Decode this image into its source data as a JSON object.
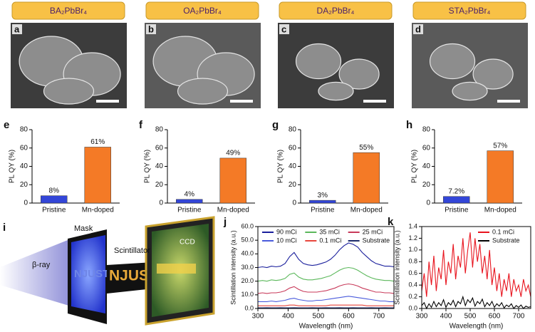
{
  "images": [
    {
      "title": "BA₂PbBr₄",
      "panel": "a"
    },
    {
      "title": "OA₂PbBr₄",
      "panel": "b"
    },
    {
      "title": "DA₂PbBr₄",
      "panel": "c"
    },
    {
      "title": "STA₂PbBr₄",
      "panel": "d"
    }
  ],
  "diagram": {
    "panel": "i",
    "beam": "β-ray",
    "mask": "Mask",
    "scintillator": "Scintillator",
    "detector": "CCD",
    "sample": "NJUST"
  },
  "chart_data": [
    {
      "type": "bar",
      "panel": "e",
      "ylabel": "PL QY (%)",
      "categories": [
        "Pristine",
        "Mn-doped"
      ],
      "values": [
        8,
        61
      ],
      "value_labels": [
        "8%",
        "61%"
      ],
      "colors": [
        "#3346d8",
        "#f47a26"
      ],
      "ylim": [
        0,
        80
      ],
      "yticks": [
        0,
        20,
        40,
        60,
        80
      ]
    },
    {
      "type": "bar",
      "panel": "f",
      "ylabel": "PL QY (%)",
      "categories": [
        "Pristine",
        "Mn-doped"
      ],
      "values": [
        4,
        49
      ],
      "value_labels": [
        "4%",
        "49%"
      ],
      "colors": [
        "#3346d8",
        "#f47a26"
      ],
      "ylim": [
        0,
        80
      ],
      "yticks": [
        0,
        20,
        40,
        60,
        80
      ]
    },
    {
      "type": "bar",
      "panel": "g",
      "ylabel": "PL QY (%)",
      "categories": [
        "Pristine",
        "Mn-doped"
      ],
      "values": [
        3,
        55
      ],
      "value_labels": [
        "3%",
        "55%"
      ],
      "colors": [
        "#3346d8",
        "#f47a26"
      ],
      "ylim": [
        0,
        80
      ],
      "yticks": [
        0,
        20,
        40,
        60,
        80
      ]
    },
    {
      "type": "bar",
      "panel": "h",
      "ylabel": "PL QY (%)",
      "categories": [
        "Pristine",
        "Mn-doped"
      ],
      "values": [
        7.2,
        57
      ],
      "value_labels": [
        "7.2%",
        "57%"
      ],
      "colors": [
        "#3346d8",
        "#f47a26"
      ],
      "ylim": [
        0,
        80
      ],
      "yticks": [
        0,
        20,
        40,
        60,
        80
      ]
    },
    {
      "type": "line",
      "panel": "j",
      "xlabel": "Wavelength (nm)",
      "ylabel": "Scintillation intensity (a.u.)",
      "legend": "top",
      "legend_columns": 3,
      "x": [
        300,
        315,
        330,
        345,
        360,
        375,
        390,
        405,
        420,
        435,
        450,
        465,
        480,
        495,
        510,
        525,
        540,
        555,
        570,
        585,
        600,
        615,
        630,
        645,
        660,
        675,
        690,
        705,
        720,
        735,
        750
      ],
      "xlim": [
        300,
        750
      ],
      "xticks": [
        300,
        400,
        500,
        600,
        700
      ],
      "ylim": [
        0,
        60
      ],
      "yticks": [
        {
          "value": 0,
          "label": "0.0"
        },
        {
          "value": 10,
          "label": "10.0"
        },
        {
          "value": 20,
          "label": "20.0"
        },
        {
          "value": 30,
          "label": "30.0"
        },
        {
          "value": 40,
          "label": "40.0"
        },
        {
          "value": 50,
          "label": "50.0"
        },
        {
          "value": 60,
          "label": "60.0"
        }
      ],
      "series": [
        {
          "name": "90 mCi",
          "color": "#1a1f9c",
          "values": [
            30,
            30.5,
            30,
            31,
            30.5,
            31,
            33,
            38,
            41,
            36,
            33,
            32,
            31.5,
            32,
            33,
            34,
            36,
            39,
            43,
            46,
            48,
            47,
            45,
            41,
            38,
            35,
            33,
            32,
            31,
            31,
            30.5
          ]
        },
        {
          "name": "35 mCi",
          "color": "#5bb85b",
          "values": [
            20,
            20.5,
            20,
            21,
            20.5,
            21,
            22,
            25,
            26,
            23,
            21.5,
            21,
            21,
            21.5,
            22,
            23,
            24,
            26,
            28,
            29.5,
            30,
            29.5,
            28,
            26,
            24,
            22.5,
            21.5,
            21,
            20.5,
            20.5,
            20
          ]
        },
        {
          "name": "25 mCi",
          "color": "#c83a5a",
          "values": [
            11,
            11.5,
            11,
            11.5,
            11.5,
            12,
            13,
            15,
            16,
            14,
            12.5,
            12,
            12,
            12,
            12.5,
            13,
            14,
            15,
            16.5,
            17.5,
            18,
            17.5,
            16.5,
            15,
            14,
            13,
            12,
            12,
            11.5,
            11.5,
            11
          ]
        },
        {
          "name": "10 mCi",
          "color": "#4a5bdc",
          "values": [
            5,
            5,
            5,
            5.5,
            5,
            5.5,
            6,
            7,
            7.5,
            6.5,
            6,
            5.5,
            5.5,
            6,
            6,
            6.5,
            7,
            7.5,
            8,
            8.5,
            9,
            8.5,
            8,
            7.5,
            7,
            6.5,
            6,
            5.5,
            5.5,
            5,
            5
          ]
        },
        {
          "name": "0.1 mCi",
          "color": "#e8463c",
          "values": [
            2,
            2,
            2,
            2,
            2,
            2,
            2,
            2.5,
            2.5,
            2,
            2,
            2,
            2,
            2,
            2,
            2,
            2.5,
            2.5,
            2.5,
            2.5,
            2.5,
            2.5,
            2.5,
            2.5,
            2,
            2,
            2,
            2,
            2,
            2,
            2
          ]
        },
        {
          "name": "Substrate",
          "color": "#1c2a6a",
          "values": [
            0.5,
            0.5,
            0.6,
            0.5,
            0.5,
            0.6,
            0.5,
            0.5,
            0.6,
            0.5,
            0.5,
            0.5,
            0.6,
            0.5,
            0.5,
            0.6,
            0.5,
            0.5,
            0.6,
            0.5,
            0.5,
            0.6,
            0.5,
            0.5,
            0.5,
            0.6,
            0.5,
            0.5,
            0.6,
            0.5,
            0.5
          ]
        }
      ]
    },
    {
      "type": "line",
      "panel": "k",
      "xlabel": "Wavelength (nm)",
      "ylabel": "Scintillation intensity (a.u.)",
      "legend": "upper right",
      "legend_columns": 1,
      "x": [
        300,
        310,
        320,
        330,
        340,
        350,
        360,
        370,
        380,
        390,
        400,
        410,
        420,
        430,
        440,
        450,
        460,
        470,
        480,
        490,
        500,
        510,
        520,
        530,
        540,
        550,
        560,
        570,
        580,
        590,
        600,
        610,
        620,
        630,
        640,
        650,
        660,
        670,
        680,
        690,
        700,
        710,
        720,
        730,
        740,
        750
      ],
      "xlim": [
        300,
        750
      ],
      "xticks": [
        300,
        400,
        500,
        600,
        700
      ],
      "ylim": [
        0,
        1.4
      ],
      "yticks": [
        {
          "value": 0,
          "label": "0.0"
        },
        0.2,
        0.4,
        0.6,
        0.8,
        {
          "value": 1,
          "label": "1.0"
        },
        1.2,
        1.4
      ],
      "series": [
        {
          "name": "0.1 mCi",
          "color": "#e8141e",
          "values": [
            0.3,
            0.6,
            0.2,
            0.8,
            0.4,
            0.9,
            0.3,
            0.7,
            0.5,
            1.0,
            0.4,
            0.8,
            0.6,
            1.1,
            0.5,
            0.9,
            0.7,
            1.2,
            0.6,
            1.0,
            1.3,
            0.7,
            1.2,
            0.8,
            1.1,
            0.6,
            0.9,
            0.5,
            1.0,
            0.4,
            0.7,
            0.3,
            0.6,
            0.2,
            0.5,
            0.3,
            0.6,
            0.2,
            0.5,
            0.3,
            0.4,
            0.2,
            0.5,
            0.3,
            0.4,
            0.2
          ]
        },
        {
          "name": "Substrate",
          "color": "#000000",
          "values": [
            0.05,
            0.1,
            0,
            0.08,
            0.02,
            0.12,
            0.03,
            0.1,
            0.05,
            0.15,
            0.02,
            0.1,
            0.06,
            0.14,
            0.03,
            0.12,
            0.08,
            0.2,
            0.05,
            0.15,
            0.1,
            0.18,
            0.04,
            0.12,
            0.08,
            0.16,
            0.03,
            0.1,
            0.05,
            0.12,
            0.02,
            0.08,
            0.04,
            0.1,
            0.01,
            0.06,
            0.03,
            0.08,
            0,
            0.05,
            0.02,
            0.06,
            0,
            0.04,
            0.02,
            0.03
          ]
        }
      ]
    }
  ]
}
